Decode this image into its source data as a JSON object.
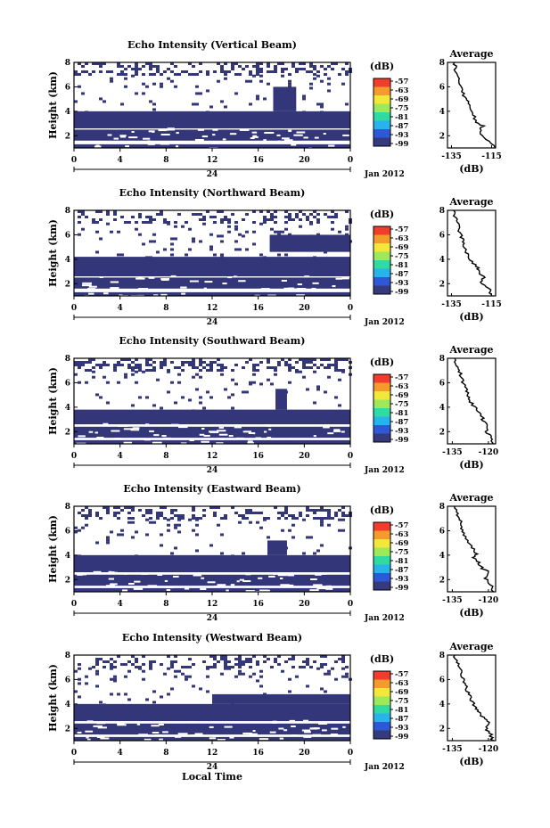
{
  "chart_data": [
    {
      "type": "heatmap",
      "title": "Echo Intensity (Vertical Beam)",
      "ylabel": "Height (km)",
      "x_ticks": [
        "0",
        "4",
        "8",
        "12",
        "16",
        "20",
        "0"
      ],
      "date_ticks": [
        "24",
        "Jan 2012"
      ],
      "y_ticks": [
        "2",
        "4",
        "6",
        "8"
      ],
      "xlim": [
        0,
        24
      ],
      "ylim": [
        1,
        8
      ],
      "colorbar": {
        "unit": "(dB)",
        "ticks": [
          "-57",
          "-63",
          "-69",
          "-75",
          "-81",
          "-87",
          "-93",
          "-99"
        ],
        "colors": [
          "#f23c2c",
          "#f59a2d",
          "#f2e839",
          "#9fe85a",
          "#2fdba0",
          "#28b3ea",
          "#2e58d6",
          "#333a7d"
        ]
      },
      "fill_color": "#34367a",
      "blocks": [
        {
          "x0": 0,
          "x1": 24,
          "y0": 2.6,
          "y1": 4.0
        },
        {
          "x0": 0,
          "x1": 24,
          "y0": 1.6,
          "y1": 2.5
        },
        {
          "x0": 0,
          "x1": 24,
          "y0": 1.0,
          "y1": 1.3
        },
        {
          "x0": 17.3,
          "x1": 19.3,
          "y0": 4.0,
          "y1": 6.0
        }
      ],
      "speckle": [
        {
          "y0": 7.0,
          "y1": 8.0,
          "p": 0.35
        },
        {
          "y0": 6.0,
          "y1": 7.0,
          "p": 0.1
        },
        {
          "y0": 4.0,
          "y1": 6.0,
          "p": 0.04
        }
      ],
      "profile": {
        "title": "Average",
        "xlabel": "(dB)",
        "x_ticks": [
          "-135",
          "-115"
        ],
        "xlim": [
          -137,
          -113
        ],
        "y_ticks": [
          "2",
          "4",
          "6",
          "8"
        ],
        "ylim": [
          1,
          8
        ],
        "values": [
          [
            -113.5,
            1.0
          ],
          [
            -115,
            1.4
          ],
          [
            -120,
            2.0
          ],
          [
            -121,
            2.6
          ],
          [
            -119,
            2.8
          ],
          [
            -123,
            3.1
          ],
          [
            -124,
            3.7
          ],
          [
            -126,
            4.2
          ],
          [
            -127,
            4.8
          ],
          [
            -129,
            5.3
          ],
          [
            -129.5,
            5.9
          ],
          [
            -131,
            6.3
          ],
          [
            -132,
            6.8
          ],
          [
            -133,
            7.4
          ],
          [
            -133.5,
            8.0
          ]
        ]
      }
    },
    {
      "type": "heatmap",
      "title": "Echo Intensity (Northward Beam)",
      "ylabel": "Height (km)",
      "x_ticks": [
        "0",
        "4",
        "8",
        "12",
        "16",
        "20",
        "0"
      ],
      "date_ticks": [
        "24",
        "Jan 2012"
      ],
      "y_ticks": [
        "2",
        "4",
        "6",
        "8"
      ],
      "xlim": [
        0,
        24
      ],
      "ylim": [
        1,
        8
      ],
      "colorbar": {
        "unit": "(dB)",
        "ticks": [
          "-57",
          "-63",
          "-69",
          "-75",
          "-81",
          "-87",
          "-93",
          "-99"
        ],
        "colors": [
          "#f23c2c",
          "#f59a2d",
          "#f2e839",
          "#9fe85a",
          "#2fdba0",
          "#28b3ea",
          "#2e58d6",
          "#333a7d"
        ]
      },
      "fill_color": "#34367a",
      "blocks": [
        {
          "x0": 0,
          "x1": 24,
          "y0": 2.6,
          "y1": 4.2
        },
        {
          "x0": 0,
          "x1": 24,
          "y0": 1.6,
          "y1": 2.5
        },
        {
          "x0": 0,
          "x1": 24,
          "y0": 1.0,
          "y1": 1.3
        },
        {
          "x0": 17.0,
          "x1": 24,
          "y0": 4.6,
          "y1": 6.0
        }
      ],
      "speckle": [
        {
          "y0": 7.0,
          "y1": 8.0,
          "p": 0.3
        },
        {
          "y0": 6.0,
          "y1": 7.0,
          "p": 0.1
        },
        {
          "y0": 4.2,
          "y1": 6.0,
          "p": 0.08
        }
      ],
      "profile": {
        "title": "Average",
        "xlabel": "(dB)",
        "x_ticks": [
          "-135",
          "-115"
        ],
        "xlim": [
          -137,
          -113
        ],
        "y_ticks": [
          "2",
          "4",
          "6",
          "8"
        ],
        "ylim": [
          1,
          8
        ],
        "values": [
          [
            -115,
            1.0
          ],
          [
            -116,
            1.5
          ],
          [
            -120,
            2.0
          ],
          [
            -119,
            2.5
          ],
          [
            -121,
            2.9
          ],
          [
            -122,
            3.3
          ],
          [
            -125,
            3.8
          ],
          [
            -127,
            4.3
          ],
          [
            -128,
            4.8
          ],
          [
            -129,
            5.3
          ],
          [
            -130,
            5.8
          ],
          [
            -131,
            6.3
          ],
          [
            -132,
            6.9
          ],
          [
            -133,
            7.4
          ],
          [
            -134,
            8.0
          ]
        ]
      }
    },
    {
      "type": "heatmap",
      "title": "Echo Intensity (Southward Beam)",
      "ylabel": "Height (km)",
      "x_ticks": [
        "0",
        "4",
        "8",
        "12",
        "16",
        "20",
        "0"
      ],
      "date_ticks": [
        "24",
        "Jan 2012"
      ],
      "y_ticks": [
        "2",
        "4",
        "6",
        "8"
      ],
      "xlim": [
        0,
        24
      ],
      "ylim": [
        1,
        8
      ],
      "colorbar": {
        "unit": "(dB)",
        "ticks": [
          "-57",
          "-63",
          "-69",
          "-75",
          "-81",
          "-87",
          "-93",
          "-99"
        ],
        "colors": [
          "#f23c2c",
          "#f59a2d",
          "#f2e839",
          "#9fe85a",
          "#2fdba0",
          "#28b3ea",
          "#2e58d6",
          "#333a7d"
        ]
      },
      "fill_color": "#34367a",
      "blocks": [
        {
          "x0": 0,
          "x1": 24,
          "y0": 2.6,
          "y1": 3.8
        },
        {
          "x0": 0,
          "x1": 24,
          "y0": 1.5,
          "y1": 2.4
        },
        {
          "x0": 0,
          "x1": 24,
          "y0": 1.0,
          "y1": 1.3
        },
        {
          "x0": 17.5,
          "x1": 18.5,
          "y0": 3.8,
          "y1": 5.5
        }
      ],
      "speckle": [
        {
          "y0": 7.0,
          "y1": 8.0,
          "p": 0.4
        },
        {
          "y0": 6.0,
          "y1": 7.0,
          "p": 0.12
        },
        {
          "y0": 3.8,
          "y1": 6.0,
          "p": 0.04
        }
      ],
      "profile": {
        "title": "Average",
        "xlabel": "(dB)",
        "x_ticks": [
          "-135",
          "-120"
        ],
        "xlim": [
          -137,
          -117
        ],
        "y_ticks": [
          "2",
          "4",
          "6",
          "8"
        ],
        "ylim": [
          1,
          8
        ],
        "values": [
          [
            -118,
            1.0
          ],
          [
            -119,
            1.5
          ],
          [
            -121,
            2.0
          ],
          [
            -120,
            2.5
          ],
          [
            -122,
            2.9
          ],
          [
            -123,
            3.3
          ],
          [
            -125,
            3.8
          ],
          [
            -127,
            4.3
          ],
          [
            -128,
            4.8
          ],
          [
            -129,
            5.3
          ],
          [
            -130,
            5.8
          ],
          [
            -131,
            6.3
          ],
          [
            -132,
            6.9
          ],
          [
            -133,
            7.4
          ],
          [
            -134,
            8.0
          ]
        ]
      }
    },
    {
      "type": "heatmap",
      "title": "Echo Intensity (Eastward Beam)",
      "ylabel": "Height (km)",
      "x_ticks": [
        "0",
        "4",
        "8",
        "12",
        "16",
        "20",
        "0"
      ],
      "date_ticks": [
        "24",
        "Jan 2012"
      ],
      "y_ticks": [
        "2",
        "4",
        "6",
        "8"
      ],
      "xlim": [
        0,
        24
      ],
      "ylim": [
        1,
        8
      ],
      "colorbar": {
        "unit": "(dB)",
        "ticks": [
          "-57",
          "-63",
          "-69",
          "-75",
          "-81",
          "-87",
          "-93",
          "-99"
        ],
        "colors": [
          "#f23c2c",
          "#f59a2d",
          "#f2e839",
          "#9fe85a",
          "#2fdba0",
          "#28b3ea",
          "#2e58d6",
          "#333a7d"
        ]
      },
      "fill_color": "#34367a",
      "blocks": [
        {
          "x0": 0,
          "x1": 24,
          "y0": 2.6,
          "y1": 4.0
        },
        {
          "x0": 0,
          "x1": 24,
          "y0": 1.5,
          "y1": 2.4
        },
        {
          "x0": 0,
          "x1": 24,
          "y0": 1.0,
          "y1": 1.3
        },
        {
          "x0": 16.8,
          "x1": 18.5,
          "y0": 4.0,
          "y1": 5.2
        }
      ],
      "speckle": [
        {
          "y0": 7.0,
          "y1": 8.0,
          "p": 0.35
        },
        {
          "y0": 6.0,
          "y1": 7.0,
          "p": 0.12
        },
        {
          "y0": 4.0,
          "y1": 6.0,
          "p": 0.05
        }
      ],
      "profile": {
        "title": "Average",
        "xlabel": "(dB)",
        "x_ticks": [
          "-135",
          "-120"
        ],
        "xlim": [
          -137,
          -117
        ],
        "y_ticks": [
          "2",
          "4",
          "6",
          "8"
        ],
        "ylim": [
          1,
          8
        ],
        "values": [
          [
            -118,
            1.0
          ],
          [
            -119,
            1.6
          ],
          [
            -121,
            2.1
          ],
          [
            -120,
            2.6
          ],
          [
            -123,
            3.0
          ],
          [
            -124,
            3.4
          ],
          [
            -126,
            3.8
          ],
          [
            -125,
            4.2
          ],
          [
            -127,
            4.6
          ],
          [
            -129,
            5.2
          ],
          [
            -130,
            5.8
          ],
          [
            -131,
            6.3
          ],
          [
            -132,
            6.9
          ],
          [
            -133,
            7.4
          ],
          [
            -134,
            8.0
          ]
        ]
      }
    },
    {
      "type": "heatmap",
      "title": "Echo Intensity (Westward Beam)",
      "ylabel": "Height (km)",
      "x_ticks": [
        "0",
        "4",
        "8",
        "12",
        "16",
        "20",
        "0"
      ],
      "date_ticks": [
        "24",
        "Jan 2012"
      ],
      "xlabel": "Local Time",
      "y_ticks": [
        "2",
        "4",
        "6",
        "8"
      ],
      "xlim": [
        0,
        24
      ],
      "ylim": [
        1,
        8
      ],
      "colorbar": {
        "unit": "(dB)",
        "ticks": [
          "-57",
          "-63",
          "-69",
          "-75",
          "-81",
          "-87",
          "-93",
          "-99"
        ],
        "colors": [
          "#f23c2c",
          "#f59a2d",
          "#f2e839",
          "#9fe85a",
          "#2fdba0",
          "#28b3ea",
          "#2e58d6",
          "#333a7d"
        ]
      },
      "fill_color": "#34367a",
      "blocks": [
        {
          "x0": 0,
          "x1": 24,
          "y0": 2.6,
          "y1": 4.0
        },
        {
          "x0": 0,
          "x1": 24,
          "y0": 1.5,
          "y1": 2.4
        },
        {
          "x0": 0,
          "x1": 24,
          "y0": 1.0,
          "y1": 1.3
        },
        {
          "x0": 12.0,
          "x1": 24,
          "y0": 4.0,
          "y1": 4.8
        }
      ],
      "speckle": [
        {
          "y0": 7.0,
          "y1": 8.0,
          "p": 0.3
        },
        {
          "y0": 6.0,
          "y1": 7.0,
          "p": 0.12
        },
        {
          "y0": 4.0,
          "y1": 6.0,
          "p": 0.06
        }
      ],
      "profile": {
        "title": "Average",
        "xlabel": "(dB)",
        "x_ticks": [
          "-135",
          "-120"
        ],
        "xlim": [
          -137,
          -117
        ],
        "y_ticks": [
          "2",
          "4",
          "6",
          "8"
        ],
        "ylim": [
          1,
          8
        ],
        "values": [
          [
            -118,
            1.0
          ],
          [
            -119,
            1.5
          ],
          [
            -121,
            2.0
          ],
          [
            -120,
            2.5
          ],
          [
            -122,
            2.9
          ],
          [
            -124,
            3.4
          ],
          [
            -126,
            3.8
          ],
          [
            -127,
            4.3
          ],
          [
            -128,
            4.8
          ],
          [
            -129,
            5.3
          ],
          [
            -130,
            5.8
          ],
          [
            -131,
            6.3
          ],
          [
            -132,
            6.9
          ],
          [
            -133,
            7.4
          ],
          [
            -134,
            8.0
          ]
        ]
      }
    }
  ]
}
